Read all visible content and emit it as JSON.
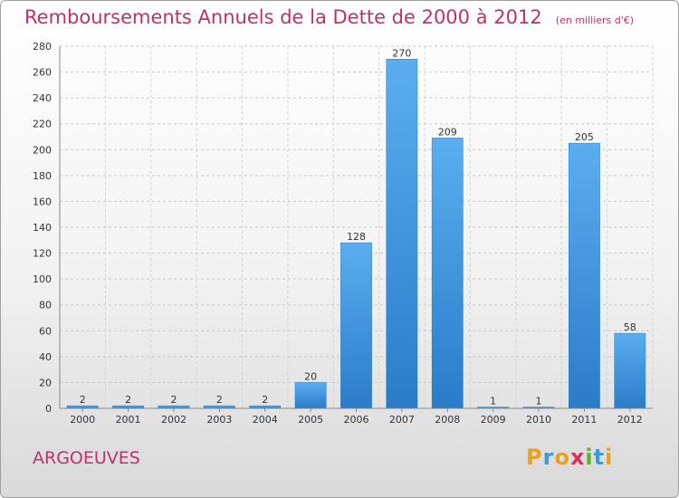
{
  "title": "Remboursements Annuels de la Dette de 2000 à 2012",
  "unit_note": "(en milliers d'€)",
  "commune": "ARGOEUVES",
  "logo": {
    "letters": [
      "P",
      "r",
      "o",
      "x",
      "i",
      "t",
      "i"
    ],
    "colors": [
      "#e8a020",
      "#3a9bd8",
      "#e8a020",
      "#d83060",
      "#60b030",
      "#3a9bd8",
      "#e8a020"
    ]
  },
  "colors": {
    "bar_top": "#5aaef0",
    "bar_bottom": "#2a7cc8",
    "accent": "#c0306a"
  },
  "chart_data": {
    "type": "bar",
    "categories": [
      "2000",
      "2001",
      "2002",
      "2003",
      "2004",
      "2005",
      "2006",
      "2007",
      "2008",
      "2009",
      "2010",
      "2011",
      "2012"
    ],
    "values": [
      2,
      2,
      2,
      2,
      2,
      20,
      128,
      270,
      209,
      1,
      1,
      205,
      58
    ],
    "ylim": [
      0,
      280
    ],
    "yticks": [
      0,
      20,
      40,
      60,
      80,
      100,
      120,
      140,
      160,
      180,
      200,
      220,
      240,
      260,
      280
    ],
    "grid": true,
    "data_labels": true
  }
}
